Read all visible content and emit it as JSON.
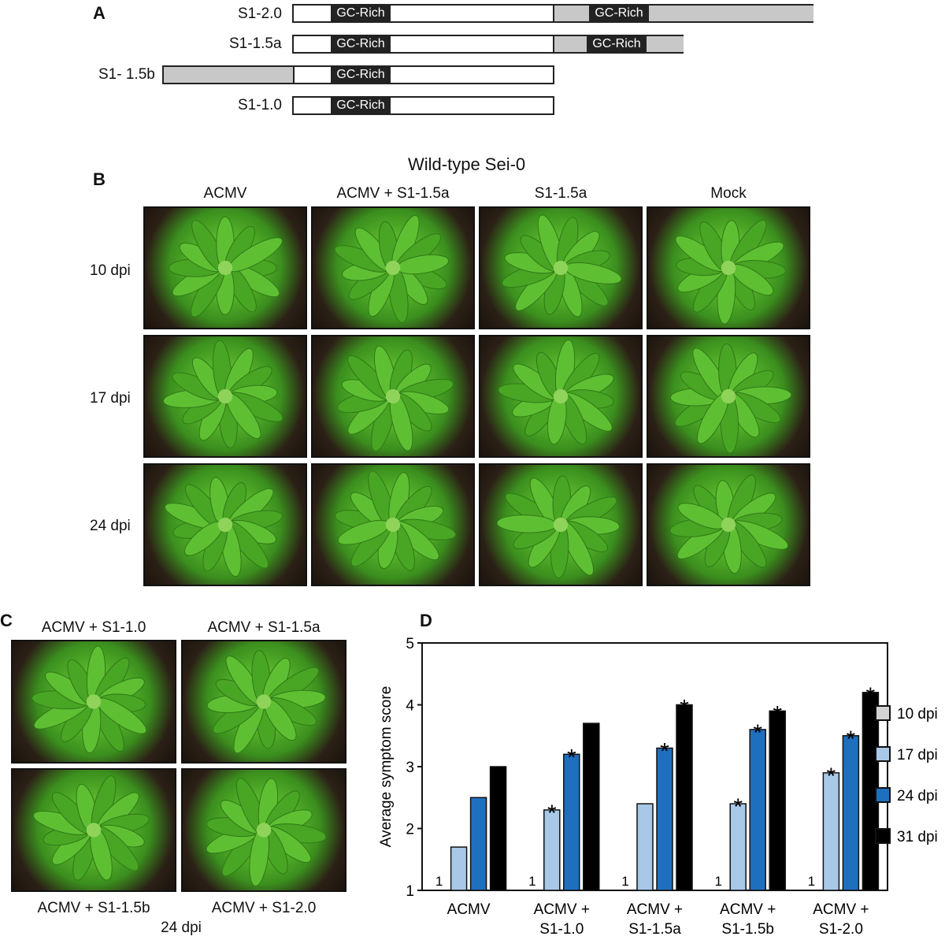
{
  "panelA": {
    "letter": "A",
    "constructs": [
      {
        "label": "S1-2.0",
        "segments": [
          "GC-Rich",
          "GC-Rich"
        ]
      },
      {
        "label": "S1-1.5a",
        "segments": [
          "GC-Rich",
          "GC-Rich"
        ]
      },
      {
        "label": "S1- 1.5b",
        "segments": [
          "GC-Rich"
        ]
      },
      {
        "label": "S1-1.0",
        "segments": [
          "GC-Rich"
        ]
      }
    ]
  },
  "panelB": {
    "letter": "B",
    "title": "Wild-type Sei-0",
    "columns": [
      "ACMV",
      "ACMV + S1-1.5a",
      "S1-1.5a",
      "Mock"
    ],
    "rows": [
      "10 dpi",
      "17 dpi",
      "24 dpi"
    ]
  },
  "panelC": {
    "letter": "C",
    "labels": [
      "ACMV + S1-1.0",
      "ACMV + S1-1.5a",
      "ACMV + S1-1.5b",
      "ACMV + S1-2.0"
    ],
    "footer": "24 dpi"
  },
  "panelD": {
    "letter": "D"
  },
  "colors": {
    "gray_region": "#c8c8c8",
    "gc_box": "#222222",
    "dpi10": "#d3d3d3",
    "dpi17": "#a8c8e8",
    "dpi24": "#1f6fbf",
    "dpi31": "#000000"
  },
  "chart_data": {
    "type": "bar",
    "title": "",
    "xlabel": "",
    "ylabel": "Average symptom score",
    "ylim": [
      1,
      5
    ],
    "yticks": [
      "1",
      "2",
      "3",
      "4",
      "5"
    ],
    "categories": [
      "ACMV",
      "ACMV +\nS1-1.0",
      "ACMV +\nS1-1.5a",
      "ACMV +\nS1-1.5b",
      "ACMV +\nS1-2.0"
    ],
    "category_lines": [
      [
        "ACMV"
      ],
      [
        "ACMV +",
        "S1-1.0"
      ],
      [
        "ACMV +",
        "S1-1.5a"
      ],
      [
        "ACMV +",
        "S1-1.5b"
      ],
      [
        "ACMV +",
        "S1-2.0"
      ]
    ],
    "series": [
      {
        "name": "10 dpi",
        "color": "#d3d3d3",
        "values": [
          1,
          1,
          1,
          1,
          1
        ]
      },
      {
        "name": "17 dpi",
        "color": "#a8c8e8",
        "values": [
          1.7,
          2.3,
          2.4,
          2.4,
          2.9
        ]
      },
      {
        "name": "24 dpi",
        "color": "#1f6fbf",
        "values": [
          2.5,
          3.2,
          3.3,
          3.6,
          3.5
        ]
      },
      {
        "name": "31 dpi",
        "color": "#000000",
        "values": [
          3.0,
          3.7,
          4.0,
          3.9,
          4.2
        ]
      }
    ],
    "value_labels": [
      {
        "series": 0,
        "category": 0,
        "text": "1"
      },
      {
        "series": 0,
        "category": 1,
        "text": "1"
      },
      {
        "series": 0,
        "category": 2,
        "text": "1"
      },
      {
        "series": 0,
        "category": 3,
        "text": "1"
      },
      {
        "series": 0,
        "category": 4,
        "text": "1"
      }
    ],
    "significance": [
      {
        "series": 1,
        "category": 1,
        "text": "*"
      },
      {
        "series": 2,
        "category": 1,
        "text": "*"
      },
      {
        "series": 2,
        "category": 2,
        "text": "*"
      },
      {
        "series": 3,
        "category": 2,
        "text": "*"
      },
      {
        "series": 1,
        "category": 3,
        "text": "*"
      },
      {
        "series": 2,
        "category": 3,
        "text": "*"
      },
      {
        "series": 3,
        "category": 3,
        "text": "*"
      },
      {
        "series": 1,
        "category": 4,
        "text": "*"
      },
      {
        "series": 2,
        "category": 4,
        "text": "*"
      },
      {
        "series": 3,
        "category": 4,
        "text": "*"
      }
    ],
    "legend": {
      "position": "right",
      "entries": [
        "10 dpi",
        "17 dpi",
        "24 dpi",
        "31 dpi"
      ]
    },
    "grid": false
  }
}
